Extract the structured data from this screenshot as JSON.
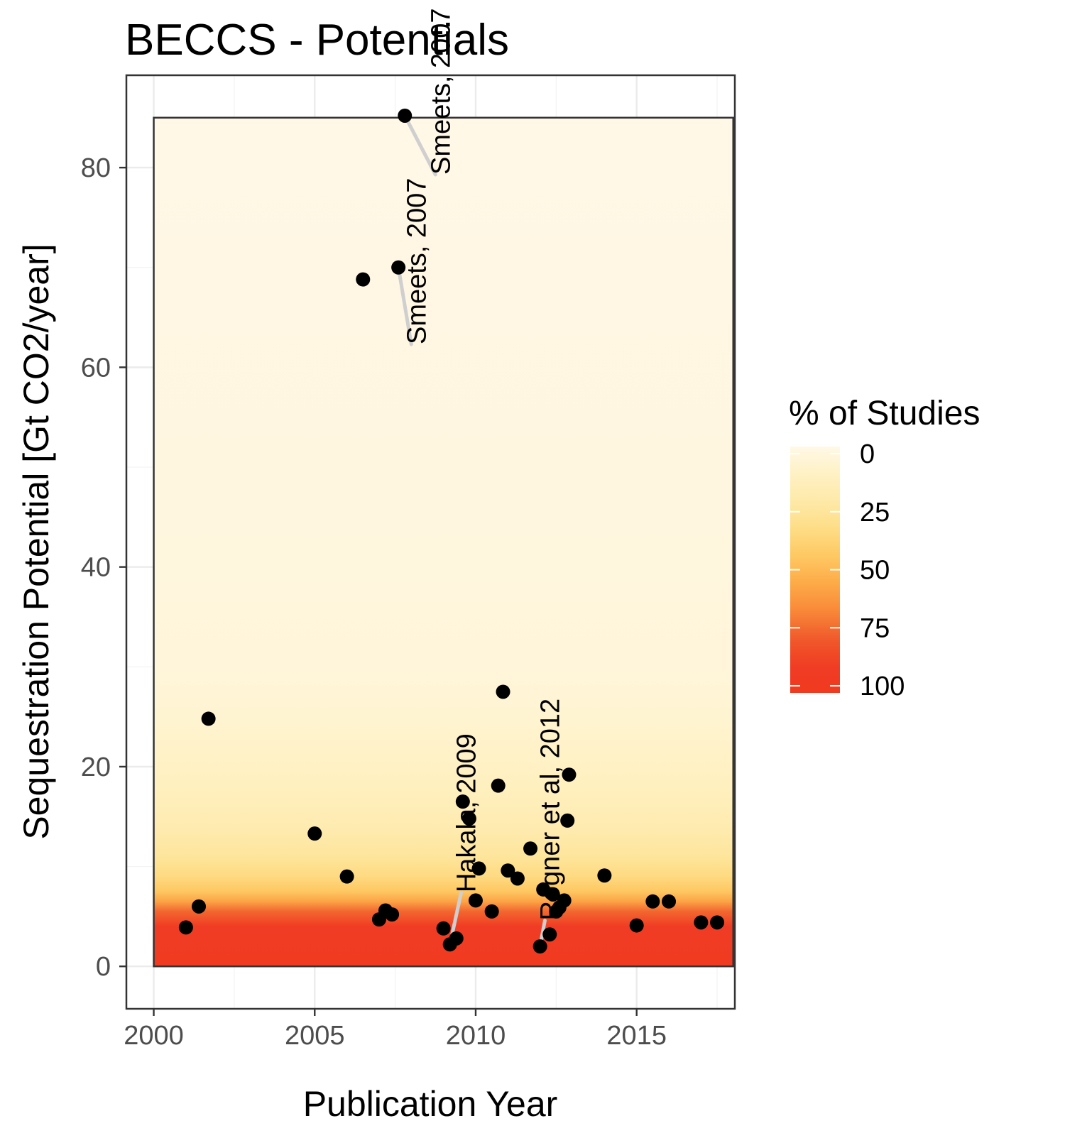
{
  "chart_data": {
    "type": "scatter",
    "title": "BECCS - Potentials",
    "xlabel": "Publication Year",
    "ylabel": "Sequestration Potential [Gt CO2/year]",
    "xlim": [
      1999.15,
      2018.05
    ],
    "ylim": [
      -4.25,
      89.25
    ],
    "x_ticks": [
      2000,
      2005,
      2010,
      2015
    ],
    "y_ticks": [
      0,
      20,
      40,
      60,
      80
    ],
    "grid": true,
    "legend": {
      "title": "% of Studies",
      "position": "right",
      "ticks": [
        0,
        25,
        50,
        75,
        100
      ],
      "colors": [
        "#fff8e7",
        "#fff1c4",
        "#fee9a8",
        "#fedd86",
        "#fec862",
        "#fdaa48",
        "#f98939",
        "#f05a2b",
        "#f03c24",
        "#f03b20"
      ]
    },
    "band": {
      "x_range": [
        2000,
        2018
      ],
      "y_range": [
        0,
        85
      ],
      "stops": [
        {
          "y": 0,
          "pct": 100
        },
        {
          "y": 4.0,
          "pct": 90
        },
        {
          "y": 5.5,
          "pct": 75
        },
        {
          "y": 6.5,
          "pct": 58
        },
        {
          "y": 7.5,
          "pct": 45
        },
        {
          "y": 9.0,
          "pct": 35
        },
        {
          "y": 11.0,
          "pct": 26
        },
        {
          "y": 14.0,
          "pct": 19
        },
        {
          "y": 18.0,
          "pct": 13
        },
        {
          "y": 25.0,
          "pct": 7
        },
        {
          "y": 30.0,
          "pct": 4
        },
        {
          "y": 40.0,
          "pct": 3
        },
        {
          "y": 70.0,
          "pct": 1
        },
        {
          "y": 85.0,
          "pct": 0
        }
      ]
    },
    "points": [
      {
        "x": 2001.0,
        "y": 3.9
      },
      {
        "x": 2001.4,
        "y": 6.0
      },
      {
        "x": 2001.7,
        "y": 24.8
      },
      {
        "x": 2005.0,
        "y": 13.3
      },
      {
        "x": 2006.0,
        "y": 9.0
      },
      {
        "x": 2006.5,
        "y": 68.8
      },
      {
        "x": 2007.0,
        "y": 4.7
      },
      {
        "x": 2007.2,
        "y": 5.6
      },
      {
        "x": 2007.4,
        "y": 5.2
      },
      {
        "x": 2007.6,
        "y": 70.0
      },
      {
        "x": 2007.8,
        "y": 85.2
      },
      {
        "x": 2009.0,
        "y": 3.8
      },
      {
        "x": 2009.2,
        "y": 2.2
      },
      {
        "x": 2009.4,
        "y": 2.8
      },
      {
        "x": 2009.6,
        "y": 16.5
      },
      {
        "x": 2009.8,
        "y": 14.8
      },
      {
        "x": 2010.0,
        "y": 6.6
      },
      {
        "x": 2010.1,
        "y": 9.8
      },
      {
        "x": 2010.5,
        "y": 5.5
      },
      {
        "x": 2010.7,
        "y": 18.1
      },
      {
        "x": 2010.85,
        "y": 27.5
      },
      {
        "x": 2011.0,
        "y": 9.6
      },
      {
        "x": 2011.3,
        "y": 8.8
      },
      {
        "x": 2011.7,
        "y": 11.8
      },
      {
        "x": 2012.0,
        "y": 2.0
      },
      {
        "x": 2012.1,
        "y": 7.7
      },
      {
        "x": 2012.3,
        "y": 3.2
      },
      {
        "x": 2012.4,
        "y": 7.2
      },
      {
        "x": 2012.5,
        "y": 5.5
      },
      {
        "x": 2012.6,
        "y": 5.9
      },
      {
        "x": 2012.75,
        "y": 6.6
      },
      {
        "x": 2012.85,
        "y": 14.6
      },
      {
        "x": 2012.9,
        "y": 19.2
      },
      {
        "x": 2014.0,
        "y": 9.1
      },
      {
        "x": 2015.0,
        "y": 4.1
      },
      {
        "x": 2015.5,
        "y": 6.5
      },
      {
        "x": 2016.0,
        "y": 6.5
      },
      {
        "x": 2017.0,
        "y": 4.4
      },
      {
        "x": 2017.5,
        "y": 4.4
      }
    ],
    "annotations": [
      {
        "text": "Smeets, 2007",
        "point": {
          "x": 2007.8,
          "y": 85.2
        },
        "anchor": {
          "x": 2008.75,
          "y": 79.3
        }
      },
      {
        "text": "Smeets, 2007",
        "point": {
          "x": 2007.6,
          "y": 70.0
        },
        "anchor": {
          "x": 2008.0,
          "y": 62.3
        }
      },
      {
        "text": "Hakala, 2009",
        "point": {
          "x": 2009.2,
          "y": 2.2
        },
        "anchor": {
          "x": 2009.55,
          "y": 7.4
        }
      },
      {
        "text": "Rogner et al, 2012",
        "point": {
          "x": 2012.0,
          "y": 2.0
        },
        "anchor": {
          "x": 2012.15,
          "y": 4.6
        }
      }
    ]
  }
}
